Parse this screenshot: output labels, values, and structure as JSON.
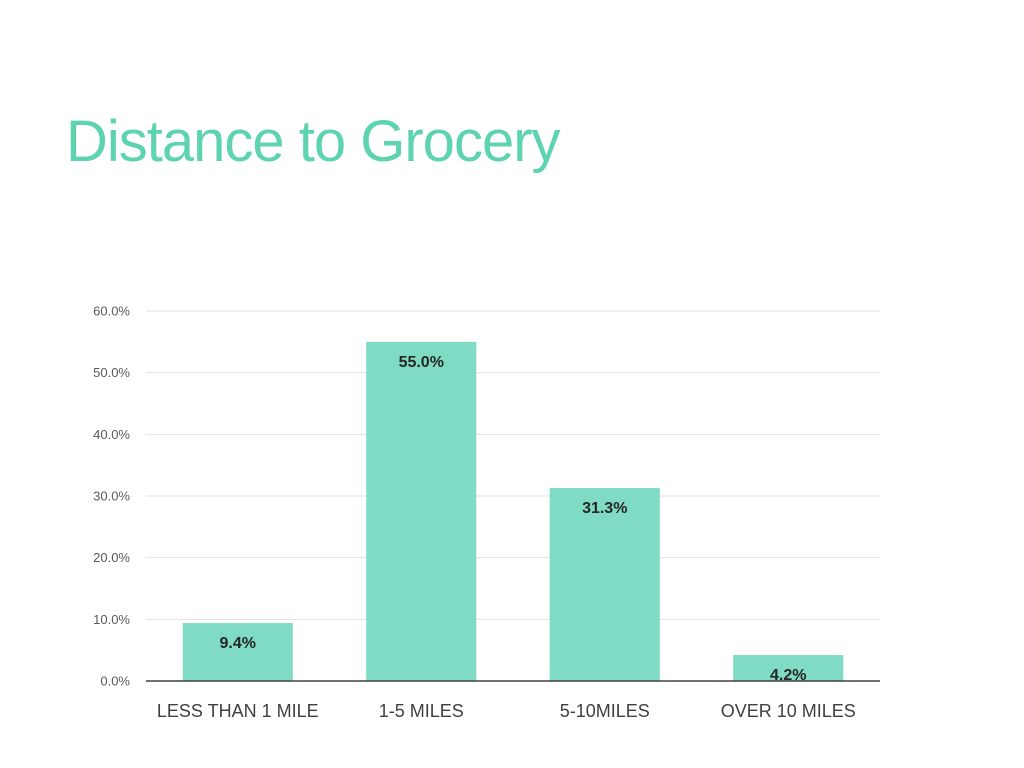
{
  "slide": {
    "title": "Distance to Grocery"
  },
  "colors": {
    "title": "#5ed3b2",
    "bar": "#7fdbc3",
    "gridline": "#e3e3e3",
    "axis": "#404040"
  },
  "chart_data": {
    "type": "bar",
    "title": "",
    "xlabel": "",
    "ylabel": "",
    "categories": [
      "LESS THAN 1 MILE",
      "1-5 MILES",
      "5-10MILES",
      "OVER 10 MILES"
    ],
    "values": [
      9.4,
      55.0,
      31.3,
      4.2
    ],
    "value_labels": [
      "9.4%",
      "55.0%",
      "31.3%",
      "4.2%"
    ],
    "ylim": [
      0,
      60
    ],
    "yticks": [
      0,
      10,
      20,
      30,
      40,
      50,
      60
    ],
    "ytick_labels": [
      "0.0%",
      "10.0%",
      "20.0%",
      "30.0%",
      "40.0%",
      "50.0%",
      "60.0%"
    ],
    "grid": true,
    "legend": "none",
    "data_label_position": "inside-end"
  }
}
